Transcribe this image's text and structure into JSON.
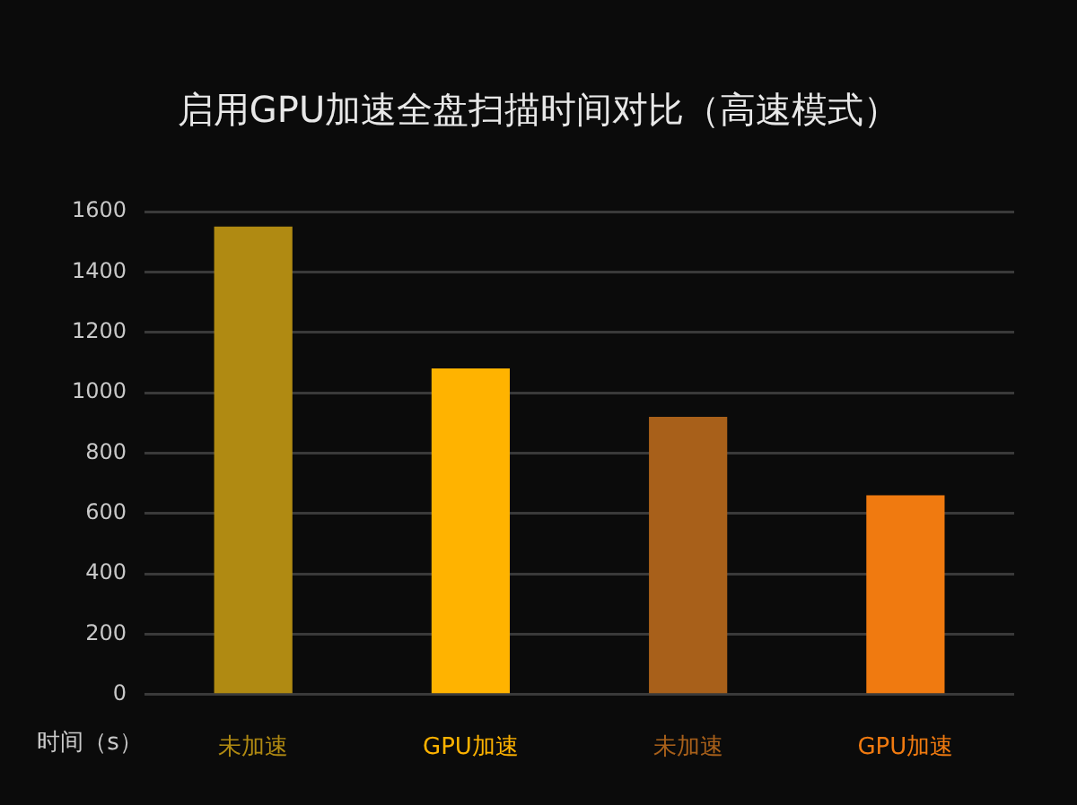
{
  "chart_data": {
    "type": "bar",
    "title": "启用GPU加速全盘扫描时间对比（高速模式）",
    "ylabel": "时间（s）",
    "categories": [
      "未加速",
      "GPU加速",
      "未加速",
      "GPU加速"
    ],
    "values": [
      1550,
      1080,
      920,
      660
    ],
    "colors": [
      "#b08a12",
      "#ffb300",
      "#a8601a",
      "#f07a10"
    ],
    "ylim": [
      0,
      1600
    ],
    "yticks": [
      0,
      200,
      400,
      600,
      800,
      1000,
      1200,
      1400,
      1600
    ],
    "grid": "y",
    "legend": false
  }
}
